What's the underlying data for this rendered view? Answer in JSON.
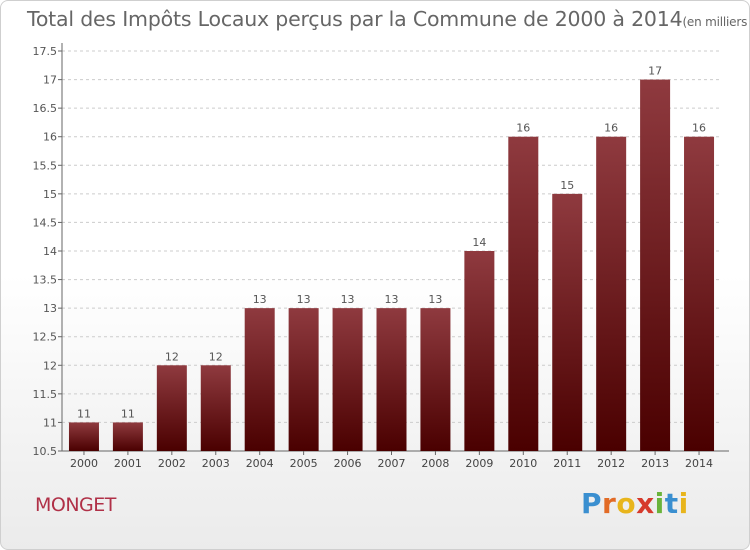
{
  "header": {
    "title": "Total des Impôts Locaux perçus par la Commune de 2000 à 2014",
    "unit": "(en milliers d'€)"
  },
  "commune": "MONGET",
  "brand": {
    "name": "Proxiti",
    "letter_colors": [
      "#3a8fd0",
      "#e26b26",
      "#e8b51c",
      "#d63a2c",
      "#6ab33a",
      "#3a8fd0",
      "#e8b51c"
    ]
  },
  "colors": {
    "bar_top": "#8f3a3f",
    "bar_bottom": "#4a0000",
    "axis": "#666666",
    "grid": "#cccccc",
    "commune_text": "#b03047"
  },
  "chart_data": {
    "type": "bar",
    "categories": [
      "2000",
      "2001",
      "2002",
      "2003",
      "2004",
      "2005",
      "2006",
      "2007",
      "2008",
      "2009",
      "2010",
      "2011",
      "2012",
      "2013",
      "2014"
    ],
    "values": [
      11,
      11,
      12,
      12,
      13,
      13,
      13,
      13,
      13,
      14,
      16,
      15,
      16,
      17,
      16
    ],
    "labels": [
      "11",
      "11",
      "12",
      "12",
      "13",
      "13",
      "13",
      "13",
      "13",
      "14",
      "16",
      "15",
      "16",
      "17",
      "16"
    ],
    "ylim": [
      10.5,
      17.5
    ],
    "yticks": [
      "10.5",
      "11",
      "11.5",
      "12",
      "12.5",
      "13",
      "13.5",
      "14",
      "14.5",
      "15",
      "15.5",
      "16",
      "16.5",
      "17",
      "17.5"
    ],
    "grid": "horizontal dashed",
    "legend": "none"
  }
}
